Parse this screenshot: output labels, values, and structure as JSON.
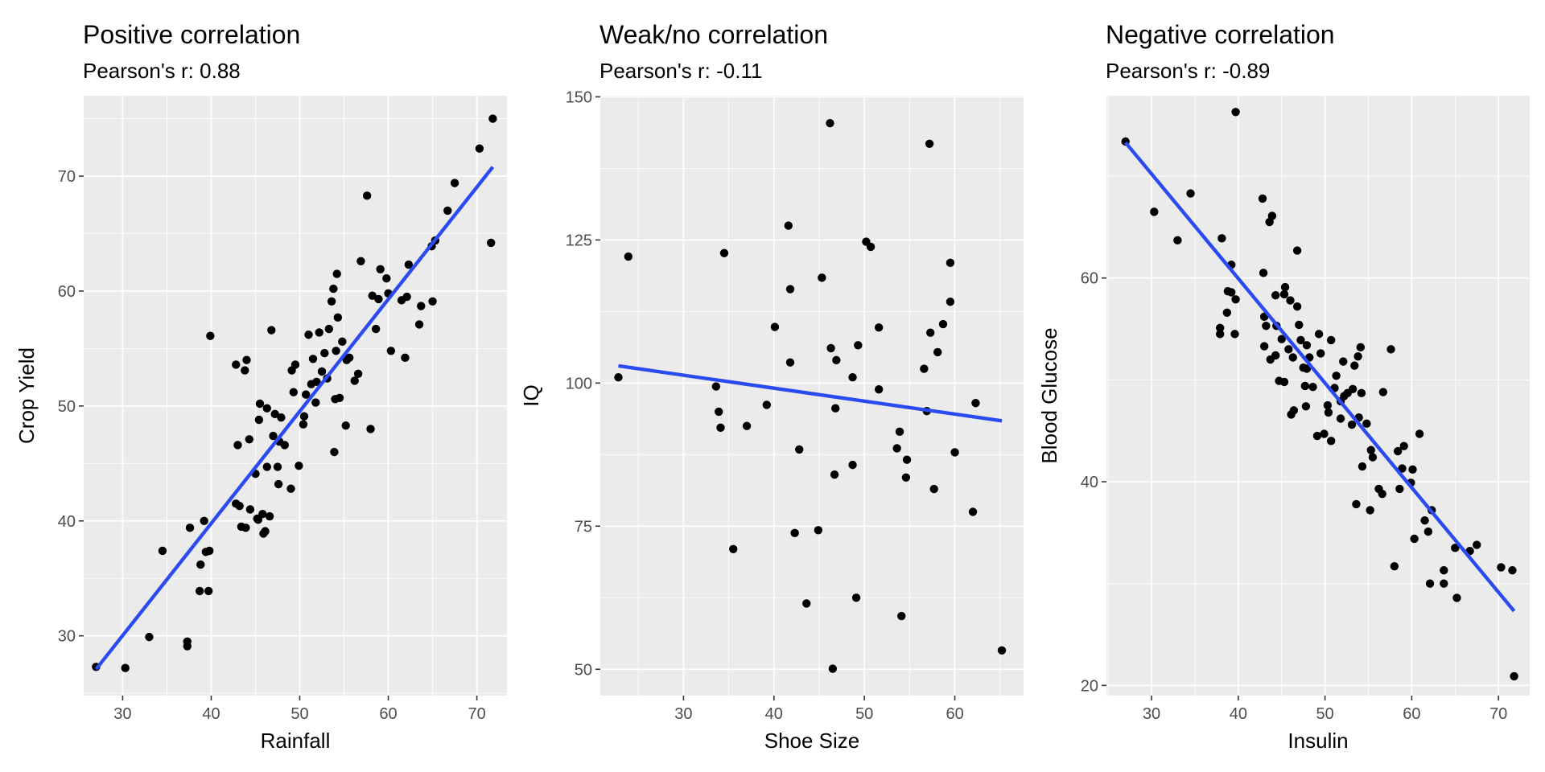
{
  "chart_data": [
    {
      "type": "scatter",
      "title": "Positive correlation",
      "subtitle": "Pearson's r:  0.88",
      "xlabel": "Rainfall",
      "ylabel": "Crop Yield",
      "xlim": [
        25.6,
        73.4
      ],
      "ylim": [
        24.8,
        77.0
      ],
      "x_ticks": [
        30,
        40,
        50,
        60,
        70
      ],
      "y_ticks": [
        30,
        40,
        50,
        60,
        70
      ],
      "grid": true,
      "point_color": "#000000",
      "line_color": "#2a4bf0",
      "fit_line": {
        "x": [
          27,
          71.8
        ],
        "y": [
          27.1,
          70.8
        ]
      },
      "series": [
        {
          "points": [
            [
              27,
              27.3
            ],
            [
              30.3,
              27.2
            ],
            [
              33,
              29.9
            ],
            [
              34.5,
              37.4
            ],
            [
              37.3,
              29.1
            ],
            [
              37.3,
              29.5
            ],
            [
              37.6,
              39.4
            ],
            [
              38.7,
              33.9
            ],
            [
              38.8,
              36.2
            ],
            [
              39.2,
              40
            ],
            [
              39.4,
              37.3
            ],
            [
              39.7,
              33.9
            ],
            [
              39.8,
              37.4
            ],
            [
              39.9,
              56.1
            ],
            [
              42.8,
              41.5
            ],
            [
              42.8,
              53.6
            ],
            [
              43,
              46.6
            ],
            [
              43.2,
              41.3
            ],
            [
              43.4,
              39.5
            ],
            [
              43.8,
              53.1
            ],
            [
              43.9,
              39.4
            ],
            [
              44,
              54
            ],
            [
              44.3,
              47.1
            ],
            [
              44.4,
              41
            ],
            [
              45,
              44.1
            ],
            [
              45.2,
              40.2
            ],
            [
              45.3,
              40.1
            ],
            [
              45.4,
              48.8
            ],
            [
              45.5,
              50.2
            ],
            [
              45.8,
              40.6
            ],
            [
              45.9,
              38.9
            ],
            [
              46.1,
              39.1
            ],
            [
              46.3,
              49.8
            ],
            [
              46.3,
              44.7
            ],
            [
              46.6,
              40.4
            ],
            [
              46.8,
              56.6
            ],
            [
              47,
              47.4
            ],
            [
              47.2,
              49.3
            ],
            [
              47.5,
              44.7
            ],
            [
              47.6,
              43.2
            ],
            [
              47.7,
              46.9
            ],
            [
              47.9,
              49
            ],
            [
              48.3,
              46.6
            ],
            [
              49,
              42.8
            ],
            [
              49.1,
              53.1
            ],
            [
              49.3,
              51.2
            ],
            [
              49.5,
              53.6
            ],
            [
              49.9,
              44.8
            ],
            [
              50.4,
              48.4
            ],
            [
              50.5,
              49.1
            ],
            [
              50.7,
              51
            ],
            [
              51,
              56.2
            ],
            [
              51.3,
              51.9
            ],
            [
              51.5,
              54.1
            ],
            [
              51.8,
              50.3
            ],
            [
              51.9,
              52.1
            ],
            [
              52.2,
              56.4
            ],
            [
              52.5,
              53
            ],
            [
              52.8,
              54.6
            ],
            [
              53.1,
              52.4
            ],
            [
              53.3,
              56.7
            ],
            [
              53.6,
              59.1
            ],
            [
              53.8,
              60.2
            ],
            [
              53.9,
              46
            ],
            [
              54,
              50.6
            ],
            [
              54.1,
              54.8
            ],
            [
              54.2,
              61.5
            ],
            [
              54.3,
              57.7
            ],
            [
              54.5,
              50.7
            ],
            [
              54.8,
              55.6
            ],
            [
              55.2,
              48.3
            ],
            [
              55.3,
              54
            ],
            [
              55.6,
              54.2
            ],
            [
              56.2,
              52.2
            ],
            [
              56.6,
              52.8
            ],
            [
              56.9,
              62.6
            ],
            [
              57.6,
              68.3
            ],
            [
              58,
              48
            ],
            [
              58.2,
              59.6
            ],
            [
              58.6,
              56.7
            ],
            [
              58.9,
              59.3
            ],
            [
              59.1,
              61.9
            ],
            [
              59.8,
              61.1
            ],
            [
              60,
              59.8
            ],
            [
              60.3,
              54.8
            ],
            [
              61.5,
              59.2
            ],
            [
              61.9,
              54.2
            ],
            [
              62.1,
              59.5
            ],
            [
              62.3,
              62.3
            ],
            [
              63.5,
              57.1
            ],
            [
              63.7,
              58.7
            ],
            [
              64.9,
              63.9
            ],
            [
              65,
              59.1
            ],
            [
              65.3,
              64.4
            ],
            [
              66.7,
              67
            ],
            [
              67.5,
              69.4
            ],
            [
              70.3,
              72.4
            ],
            [
              71.6,
              64.2
            ],
            [
              71.8,
              75
            ]
          ]
        }
      ]
    },
    {
      "type": "scatter",
      "title": "Weak/no correlation",
      "subtitle": "Pearson's r:  -0.11",
      "xlabel": "Shoe Size",
      "ylabel": "IQ",
      "xlim": [
        20.8,
        67.6
      ],
      "ylim": [
        45.4,
        150.2
      ],
      "x_ticks": [
        30,
        40,
        50,
        60
      ],
      "y_ticks": [
        50,
        75,
        100,
        125,
        150
      ],
      "grid": true,
      "point_color": "#000000",
      "line_color": "#2a4bf0",
      "fit_line": {
        "x": [
          22.8,
          65.2
        ],
        "y": [
          103,
          93.4
        ]
      },
      "series": [
        {
          "points": [
            [
              22.8,
              101
            ],
            [
              23.9,
              122.1
            ],
            [
              33.6,
              99.4
            ],
            [
              33.9,
              95
            ],
            [
              34.1,
              92.2
            ],
            [
              34.5,
              122.7
            ],
            [
              35.5,
              71
            ],
            [
              37,
              92.5
            ],
            [
              39.2,
              96.2
            ],
            [
              40.1,
              109.8
            ],
            [
              41.6,
              127.5
            ],
            [
              41.8,
              116.4
            ],
            [
              41.8,
              103.6
            ],
            [
              42.3,
              73.8
            ],
            [
              42.8,
              88.4
            ],
            [
              43.6,
              61.5
            ],
            [
              44.9,
              74.3
            ],
            [
              45.3,
              118.4
            ],
            [
              46.2,
              145.4
            ],
            [
              46.3,
              106.1
            ],
            [
              46.5,
              50.1
            ],
            [
              46.7,
              84
            ],
            [
              46.8,
              95.6
            ],
            [
              46.9,
              104
            ],
            [
              48.7,
              101
            ],
            [
              48.7,
              85.7
            ],
            [
              49.1,
              62.5
            ],
            [
              49.3,
              106.6
            ],
            [
              50.2,
              124.7
            ],
            [
              50.7,
              123.8
            ],
            [
              51.6,
              109.7
            ],
            [
              51.6,
              98.9
            ],
            [
              53.6,
              88.6
            ],
            [
              53.9,
              91.5
            ],
            [
              54.1,
              59.3
            ],
            [
              54.6,
              83.5
            ],
            [
              54.7,
              86.6
            ],
            [
              56.6,
              102.5
            ],
            [
              56.9,
              95.1
            ],
            [
              57.2,
              141.8
            ],
            [
              57.3,
              108.8
            ],
            [
              57.7,
              81.5
            ],
            [
              58.1,
              105.4
            ],
            [
              58.7,
              110.3
            ],
            [
              59.5,
              114.2
            ],
            [
              59.5,
              121
            ],
            [
              60,
              87.9
            ],
            [
              62,
              77.5
            ],
            [
              62.3,
              96.5
            ],
            [
              65.2,
              53.3
            ]
          ]
        }
      ]
    },
    {
      "type": "scatter",
      "title": "Negative correlation",
      "subtitle": "Pearson's r:  -0.89",
      "xlabel": "Insulin",
      "ylabel": "Blood Glucose",
      "xlim": [
        24.8,
        73.6
      ],
      "ylim": [
        19,
        77.9
      ],
      "x_ticks": [
        30,
        40,
        50,
        60,
        70
      ],
      "y_ticks": [
        20,
        40,
        60
      ],
      "grid": true,
      "point_color": "#000000",
      "line_color": "#2a4bf0",
      "fit_line": {
        "x": [
          27,
          71.8
        ],
        "y": [
          73.3,
          27.3
        ]
      },
      "series": [
        {
          "points": [
            [
              27,
              73.4
            ],
            [
              30.3,
              66.5
            ],
            [
              33,
              63.7
            ],
            [
              34.5,
              68.3
            ],
            [
              37.9,
              54.5
            ],
            [
              37.9,
              55.1
            ],
            [
              38.1,
              63.9
            ],
            [
              38.7,
              56.6
            ],
            [
              38.8,
              58.7
            ],
            [
              39.2,
              58.6
            ],
            [
              39.2,
              61.3
            ],
            [
              39.6,
              54.5
            ],
            [
              39.7,
              57.9
            ],
            [
              39.7,
              76.3
            ],
            [
              42.8,
              67.8
            ],
            [
              42.9,
              60.5
            ],
            [
              43,
              56.2
            ],
            [
              43,
              53.3
            ],
            [
              43.2,
              55.3
            ],
            [
              43.6,
              65.5
            ],
            [
              43.7,
              52
            ],
            [
              43.9,
              66.1
            ],
            [
              44.3,
              52.4
            ],
            [
              44.3,
              58.3
            ],
            [
              44.4,
              55.3
            ],
            [
              44.7,
              49.9
            ],
            [
              45,
              54
            ],
            [
              45.3,
              49.8
            ],
            [
              45.3,
              58.4
            ],
            [
              45.4,
              59.1
            ],
            [
              45.8,
              53
            ],
            [
              46,
              57.8
            ],
            [
              46.1,
              46.6
            ],
            [
              46.3,
              52.2
            ],
            [
              46.4,
              47
            ],
            [
              46.8,
              62.7
            ],
            [
              46.8,
              57.2
            ],
            [
              47,
              55.4
            ],
            [
              47.2,
              53.9
            ],
            [
              47.5,
              51.2
            ],
            [
              47.7,
              49.4
            ],
            [
              47.8,
              47.4
            ],
            [
              47.9,
              53.4
            ],
            [
              47.9,
              51.1
            ],
            [
              48.2,
              52.2
            ],
            [
              48.6,
              49.3
            ],
            [
              49.1,
              44.5
            ],
            [
              49.3,
              54.5
            ],
            [
              49.5,
              52.6
            ],
            [
              49.9,
              44.7
            ],
            [
              50.3,
              47.5
            ],
            [
              50.4,
              46.8
            ],
            [
              50.7,
              53.9
            ],
            [
              50.7,
              44
            ],
            [
              51.1,
              49.2
            ],
            [
              51.3,
              50.4
            ],
            [
              51.8,
              46.2
            ],
            [
              51.8,
              47.9
            ],
            [
              52.1,
              51.8
            ],
            [
              52.2,
              48.4
            ],
            [
              52.6,
              48.7
            ],
            [
              53.1,
              45.6
            ],
            [
              53.2,
              49.1
            ],
            [
              53.4,
              51.4
            ],
            [
              53.6,
              37.8
            ],
            [
              53.8,
              52.3
            ],
            [
              53.9,
              46.3
            ],
            [
              54.1,
              53.2
            ],
            [
              54.2,
              48.7
            ],
            [
              54.3,
              41.5
            ],
            [
              54.8,
              45.7
            ],
            [
              55.2,
              37.2
            ],
            [
              55.3,
              43.1
            ],
            [
              55.5,
              42.4
            ],
            [
              56.2,
              39.3
            ],
            [
              56.6,
              38.8
            ],
            [
              56.7,
              48.8
            ],
            [
              57.6,
              53
            ],
            [
              58,
              31.7
            ],
            [
              58.4,
              43
            ],
            [
              58.6,
              39.3
            ],
            [
              58.9,
              41.3
            ],
            [
              59.1,
              43.5
            ],
            [
              59.9,
              39.9
            ],
            [
              60.1,
              41.2
            ],
            [
              60.3,
              34.4
            ],
            [
              60.9,
              44.7
            ],
            [
              61.5,
              36.2
            ],
            [
              61.9,
              35.1
            ],
            [
              62.1,
              30
            ],
            [
              62.3,
              37.2
            ],
            [
              63.7,
              31.3
            ],
            [
              63.7,
              30
            ],
            [
              65,
              33.5
            ],
            [
              65.2,
              28.6
            ],
            [
              66.7,
              33.2
            ],
            [
              67.5,
              33.8
            ],
            [
              70.3,
              31.6
            ],
            [
              71.6,
              31.3
            ],
            [
              71.8,
              20.9
            ]
          ]
        }
      ]
    }
  ]
}
